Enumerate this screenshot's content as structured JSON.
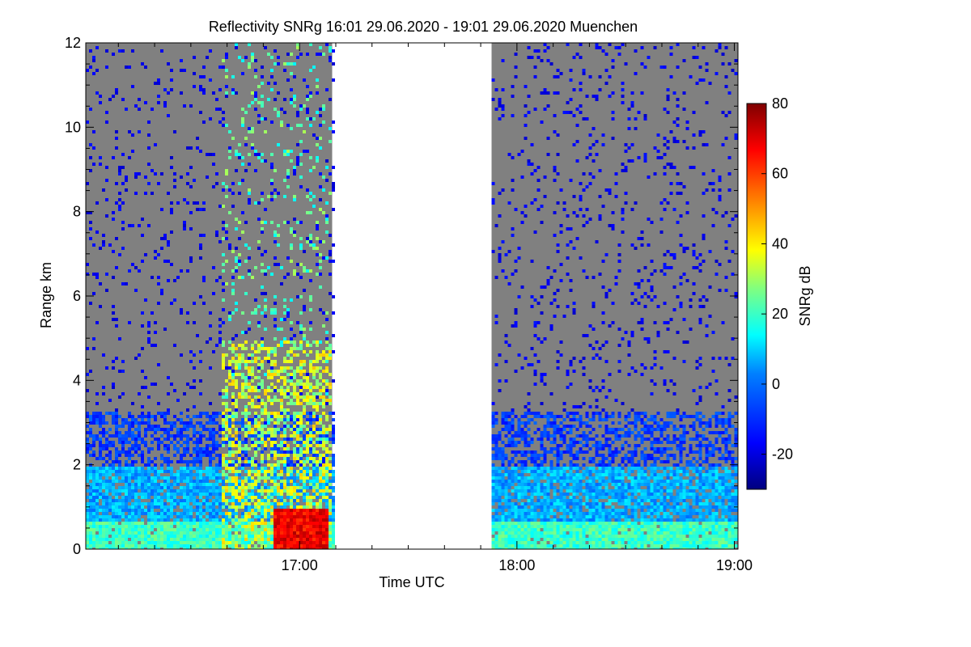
{
  "chart_data": {
    "type": "heatmap",
    "title": "Reflectivity SNRg   16:01 29.06.2020 - 19:01 29.06.2020 Muenchen",
    "xlabel": "Time UTC",
    "ylabel": "Range km",
    "x_range": [
      "16:01",
      "19:01"
    ],
    "x_ticks": [
      "17:00",
      "18:00",
      "19:00"
    ],
    "y_range": [
      0,
      12
    ],
    "y_ticks": [
      "0",
      "2",
      "4",
      "6",
      "8",
      "10",
      "12"
    ],
    "colorbar": {
      "label": "SNRg dB",
      "range": [
        -30,
        80
      ],
      "ticks": [
        "-20",
        "0",
        "20",
        "40",
        "60",
        "80"
      ],
      "colormap": [
        "#00007f",
        "#0000ff",
        "#0080ff",
        "#00ffff",
        "#80ff80",
        "#ffff00",
        "#ff8000",
        "#ff0000",
        "#7f0000"
      ]
    },
    "no_signal_color": "#808080",
    "data_gap": [
      "17:09",
      "17:53"
    ]
  }
}
